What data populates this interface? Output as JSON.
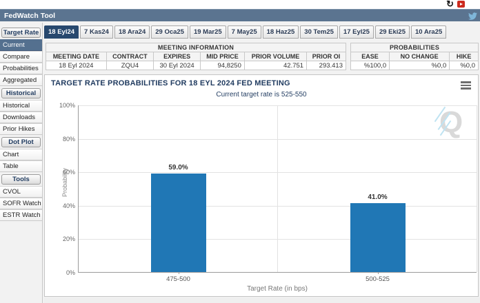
{
  "window": {
    "title": "FedWatch Tool"
  },
  "top_icons": {
    "refresh_glyph": "↻",
    "refresh_name": "refresh-icon",
    "video_name": "video-icon",
    "twitter_name": "twitter-icon"
  },
  "sidebar": {
    "sections": [
      {
        "header": "Target Rate",
        "items": [
          {
            "label": "Current",
            "selected": true
          },
          {
            "label": "Compare",
            "selected": false
          },
          {
            "label": "Probabilities",
            "selected": false
          },
          {
            "label": "Aggregated",
            "selected": false
          }
        ]
      },
      {
        "header": "Historical",
        "items": [
          {
            "label": "Historical",
            "selected": false
          },
          {
            "label": "Downloads",
            "selected": false
          },
          {
            "label": "Prior Hikes",
            "selected": false
          }
        ]
      },
      {
        "header": "Dot Plot",
        "items": [
          {
            "label": "Chart",
            "selected": false
          },
          {
            "label": "Table",
            "selected": false
          }
        ]
      },
      {
        "header": "Tools",
        "items": [
          {
            "label": "CVOL",
            "selected": false
          },
          {
            "label": "SOFR Watch",
            "selected": false
          },
          {
            "label": "ESTR Watch",
            "selected": false
          }
        ]
      }
    ]
  },
  "tabs": {
    "selected_index": 0,
    "items": [
      "18 Eyl24",
      "7 Kas24",
      "18 Ara24",
      "29 Oca25",
      "19 Mar25",
      "7 May25",
      "18 Haz25",
      "30 Tem25",
      "17 Eyl25",
      "29 Eki25",
      "10 Ara25"
    ]
  },
  "meeting_info": {
    "title": "MEETING INFORMATION",
    "columns": [
      "MEETING DATE",
      "CONTRACT",
      "EXPIRES",
      "MID PRICE",
      "PRIOR VOLUME",
      "PRIOR OI"
    ],
    "values": [
      "18 Eyl 2024",
      "ZQU4",
      "30 Eyl 2024",
      "94,8250",
      "42.751",
      "293.413"
    ],
    "numeric_from_index": 3
  },
  "probabilities": {
    "title": "PROBABILITIES",
    "columns": [
      "EASE",
      "NO CHANGE",
      "HIKE"
    ],
    "values": [
      "%100,0",
      "%0,0",
      "%0,0"
    ]
  },
  "chart_data": {
    "type": "bar",
    "title": "TARGET RATE PROBABILITIES FOR 18 EYL 2024 FED MEETING",
    "subtitle": "Current target rate is 525-550",
    "categories": [
      "475-500",
      "500-525"
    ],
    "values": [
      59.0,
      41.0
    ],
    "bar_labels": [
      "59.0%",
      "41.0%"
    ],
    "xlabel": "Target Rate (in bps)",
    "ylabel": "Probability",
    "ylim": [
      0,
      100
    ],
    "yticks": [
      0,
      20,
      40,
      60,
      80,
      100
    ],
    "ytick_labels": [
      "0%",
      "20%",
      "40%",
      "60%",
      "80%",
      "100%"
    ],
    "grid": true,
    "legend": "none",
    "bar_color": "#2077b5",
    "watermark": "Q"
  },
  "theme": {
    "titlebar_bg": "#5b7490",
    "selected_tab_bg": "#27486e",
    "selected_item_bg": "#54708f",
    "heading_color": "#1f3a5f",
    "video_icon_color": "#cc2a1e",
    "twitter_color": "#7fb6d9"
  }
}
